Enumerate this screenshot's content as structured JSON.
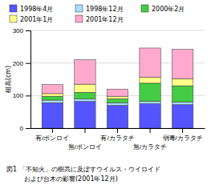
{
  "chart_data": {
    "type": "bar",
    "stacked": true,
    "grid": true,
    "legend": "top",
    "title": "図1  「不知火」の樹高に及ぼすウイルス・ウイロイド",
    "subtitle": "および台木の影響(2001年12月)",
    "ylabel": "樹高(cm)",
    "categories": [
      "有/ポンロイ",
      "無/ポンロイ",
      "有/カラタチ",
      "無/カラタチ",
      "弱毒/カラタチ"
    ],
    "ylim": [
      0,
      300
    ],
    "yticks": [
      0,
      100,
      200,
      300
    ],
    "series": [
      {
        "name": "1998年4月",
        "color": "#5555ff",
        "values": [
          78,
          82,
          70,
          75,
          72
        ]
      },
      {
        "name": "1998年12月",
        "color": "#aaddff",
        "values": [
          8,
          8,
          8,
          8,
          8
        ]
      },
      {
        "name": "2000年2月",
        "color": "#44cc44",
        "values": [
          12,
          20,
          12,
          55,
          50
        ]
      },
      {
        "name": "2001年1月",
        "color": "#ffff88",
        "values": [
          8,
          25,
          8,
          18,
          22
        ]
      },
      {
        "name": "2001年12月",
        "color": "#ffaacc",
        "values": [
          28,
          75,
          22,
          90,
          90
        ]
      }
    ]
  }
}
